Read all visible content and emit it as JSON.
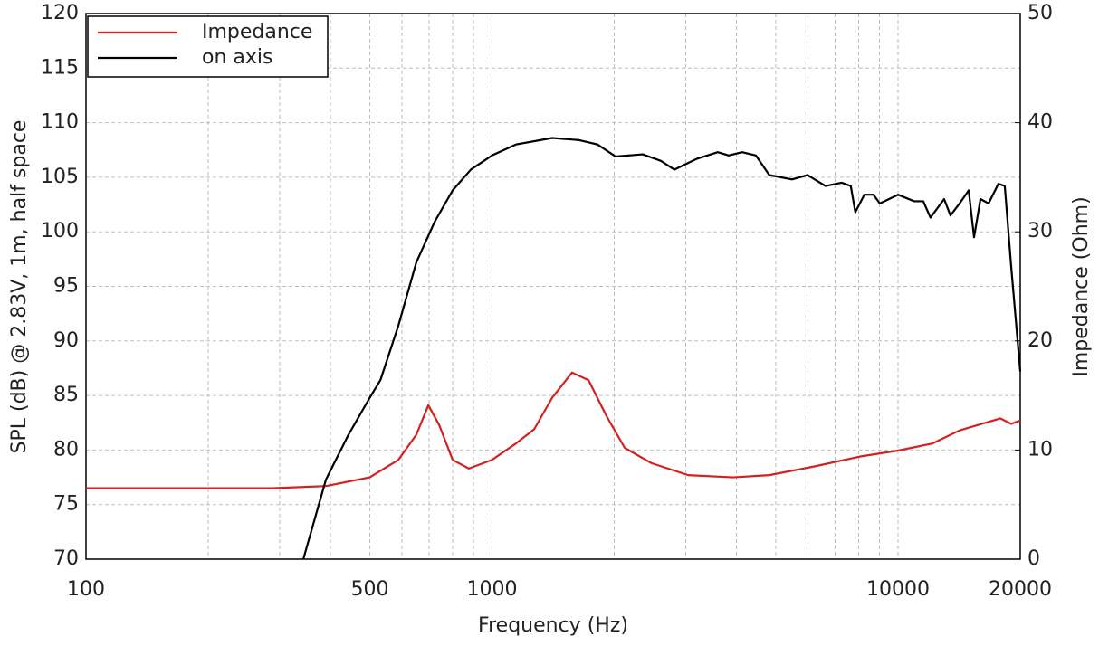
{
  "chart_data": {
    "type": "line",
    "xlabel": "Frequency (Hz)",
    "ylabel": "SPL (dB) @ 2.83V, 1m, half space",
    "y2label": "Impedance (Ohm)",
    "xscale": "log",
    "xlim": [
      100,
      20000
    ],
    "xticks": [
      100,
      500,
      1000,
      10000,
      20000
    ],
    "xminorticks": [
      200,
      300,
      400,
      600,
      700,
      800,
      900,
      2000,
      3000,
      4000,
      5000,
      6000,
      7000,
      8000,
      9000
    ],
    "ylim": [
      70,
      120
    ],
    "yticks": [
      70,
      75,
      80,
      85,
      90,
      95,
      100,
      105,
      110,
      115,
      120
    ],
    "y2lim": [
      0,
      50
    ],
    "y2ticks": [
      0,
      10,
      20,
      30,
      40,
      50
    ],
    "grid": true,
    "legend": "upper left",
    "series": [
      {
        "name": "Impedance",
        "color": "#d42020",
        "axis": "y2",
        "x": [
          100,
          286,
          390,
          500,
          588,
          651,
          697,
          741,
          800,
          877,
          1000,
          1145,
          1270,
          1407,
          1574,
          1729,
          1915,
          2123,
          2470,
          3041,
          3926,
          4819,
          6223,
          8050,
          10000,
          12160,
          14180,
          15740,
          17870,
          19000,
          20000
        ],
        "values": [
          6.5,
          6.5,
          6.7,
          7.5,
          9.1,
          11.4,
          14.1,
          12.3,
          9.1,
          8.3,
          9.1,
          10.6,
          11.9,
          14.8,
          17.1,
          16.4,
          13.1,
          10.2,
          8.8,
          7.7,
          7.5,
          7.7,
          8.5,
          9.4,
          9.95,
          10.6,
          11.8,
          12.3,
          12.9,
          12.4,
          12.7
        ]
      },
      {
        "name": "on axis",
        "color": "#000000",
        "x": [
          343,
          390,
          443,
          500,
          531,
          588,
          651,
          722,
          800,
          887,
          1000,
          1145,
          1407,
          1641,
          1819,
          2015,
          2350,
          2606,
          2812,
          3199,
          3597,
          3828,
          4131,
          4465,
          4819,
          5483,
          5984,
          6627,
          7265,
          7650,
          7850,
          8261,
          8700,
          9020,
          10000,
          10960,
          11540,
          12020,
          12990,
          13460,
          14180,
          14930,
          15390,
          15960,
          16710,
          17670,
          18320,
          19000,
          20000
        ],
        "values": [
          70,
          77.3,
          81.4,
          84.8,
          86.4,
          91.4,
          97.2,
          100.9,
          103.8,
          105.7,
          107,
          108,
          108.6,
          108.4,
          108,
          106.9,
          107.1,
          106.5,
          105.7,
          106.7,
          107.3,
          107,
          107.3,
          107,
          105.2,
          104.8,
          105.2,
          104.2,
          104.5,
          104.2,
          101.8,
          103.4,
          103.4,
          102.6,
          103.4,
          102.8,
          102.8,
          101.3,
          103,
          101.5,
          102.6,
          103.8,
          99.5,
          103,
          102.6,
          104.4,
          104.2,
          96.8,
          87.2
        ]
      }
    ]
  }
}
